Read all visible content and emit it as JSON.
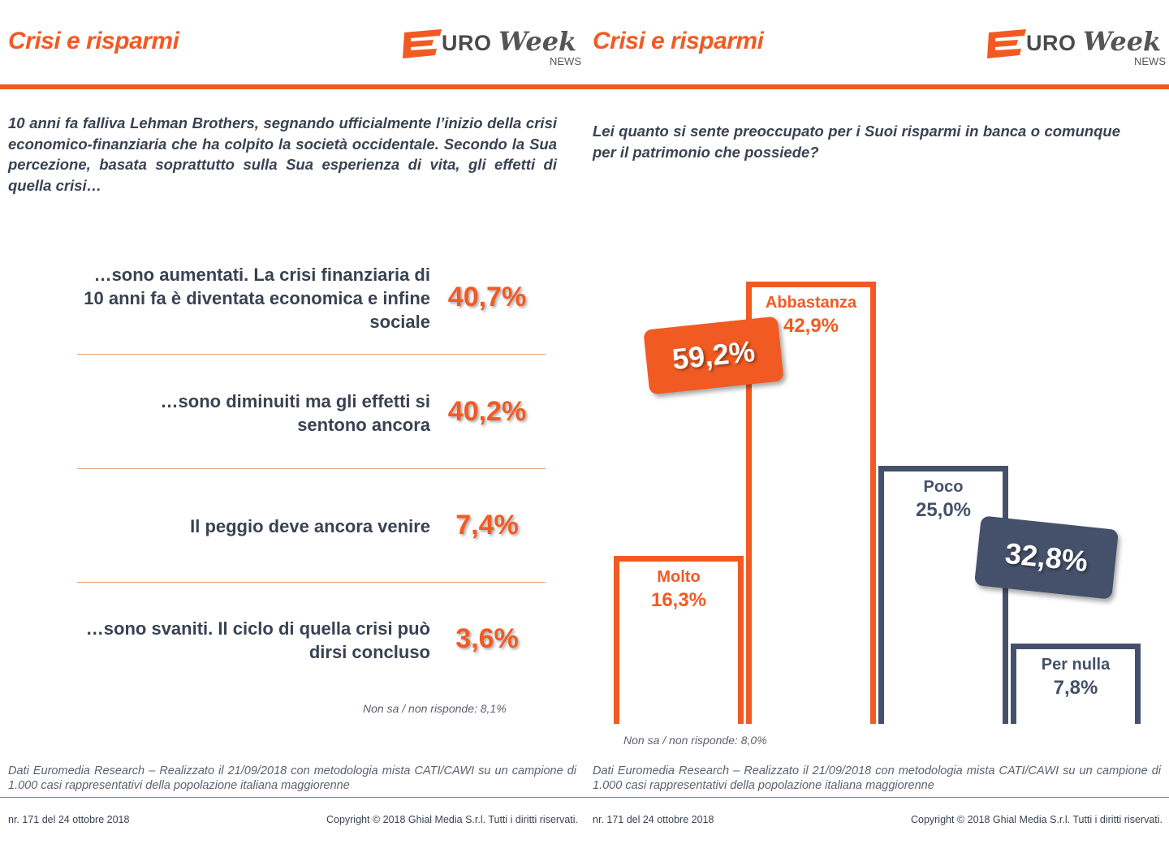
{
  "left": {
    "title": "Crisi e risparmi",
    "logo": {
      "uro": "URO",
      "week": "Week",
      "news": "NEWS"
    },
    "question": "10 anni fa falliva Lehman Brothers, segnando ufficialmente l’inizio della crisi economico-finanziaria  che ha colpito la società occidentale.  Secondo la Sua percezione,  basata soprattutto sulla Sua esperienza di vita, gli effetti di quella crisi…",
    "answers": [
      {
        "label": "…sono aumentati. La crisi finanziaria di 10 anni fa è diventata economica e infine sociale",
        "value": "40,7%"
      },
      {
        "label": "…sono diminuiti ma gli effetti si sentono ancora",
        "value": "40,2%"
      },
      {
        "label": "Il peggio deve ancora venire",
        "value": "7,4%"
      },
      {
        "label": "…sono svaniti. Il ciclo di quella crisi può dirsi concluso",
        "value": "3,6%"
      }
    ],
    "nonsa": "Non sa / non risponde: 8,1%",
    "source": "Dati Euromedia Research – Realizzato il 21/09/2018 con metodologia mista CATI/CAWI su un campione di 1.000 casi rappresentativi della popolazione italiana maggiorenne",
    "footer_left": "nr. 171  del 24 ottobre 2018",
    "footer_right": "Copyright © 2018 Ghial Media S.r.l. Tutti i diritti riservati."
  },
  "right": {
    "title": "Crisi e risparmi",
    "logo": {
      "uro": "URO",
      "week": "Week",
      "news": "NEWS"
    },
    "question": "Lei quanto si sente preoccupato per i Suoi risparmi in banca o comunque per il patrimonio che possiede?",
    "nonsa": "Non sa / non risponde: 8,0%",
    "source": "Dati Euromedia Research – Realizzato il 21/09/2018 con metodologia mista CATI/CAWI su un campione di 1.000 casi rappresentativi della popolazione italiana maggiorenne",
    "footer_left": "nr. 171  del 24 ottobre 2018",
    "footer_right": "Copyright © 2018 Ghial Media S.r.l. Tutti i diritti riservati."
  },
  "chart_data": [
    {
      "type": "table",
      "categories": [
        "…sono aumentati. La crisi finanziaria di 10 anni fa è diventata economica e infine sociale",
        "…sono diminuiti ma gli effetti si sentono ancora",
        "Il peggio deve ancora venire",
        "…sono svaniti. Il ciclo di quella crisi può dirsi concluso"
      ],
      "values": [
        40.7,
        40.2,
        7.4,
        3.6
      ],
      "annotations": [
        "Non sa / non risponde: 8,1%"
      ]
    },
    {
      "type": "bar",
      "categories": [
        "Molto",
        "Abbastanza",
        "Poco",
        "Per nulla"
      ],
      "values": [
        16.3,
        42.9,
        25.0,
        7.8
      ],
      "value_labels": [
        "16,3%",
        "42,9%",
        "25,0%",
        "7,8%"
      ],
      "colors": [
        "#f15a22",
        "#f15a22",
        "#45516a",
        "#45516a"
      ],
      "groups": [
        {
          "label": "59,2%",
          "value": 59.2,
          "color": "#f15a22"
        },
        {
          "label": "32,8%",
          "value": 32.8,
          "color": "#45516a"
        }
      ],
      "ylim": [
        0,
        45
      ],
      "grid": false,
      "annotations": [
        "Non sa / non risponde: 8,0%"
      ]
    }
  ]
}
